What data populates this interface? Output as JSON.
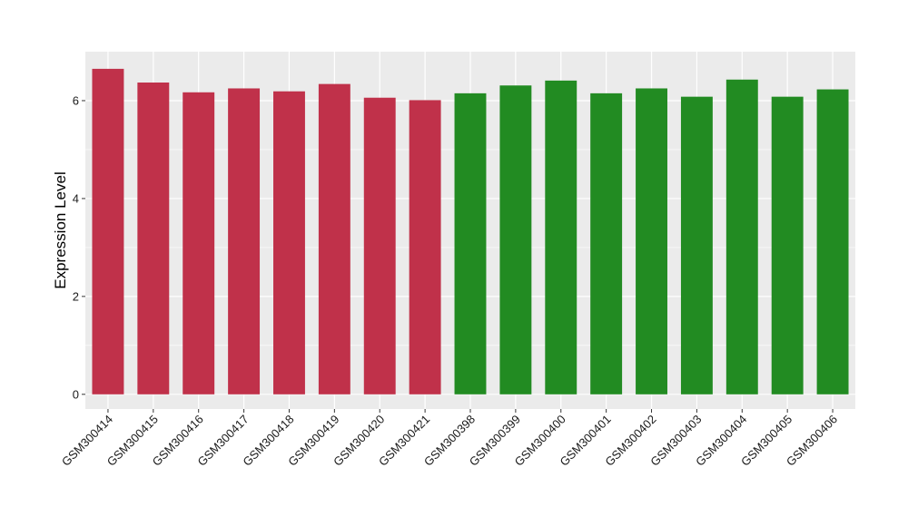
{
  "chart_data": {
    "type": "bar",
    "categories": [
      "GSM300414",
      "GSM300415",
      "GSM300416",
      "GSM300417",
      "GSM300418",
      "GSM300419",
      "GSM300420",
      "GSM300421",
      "GSM300398",
      "GSM300399",
      "GSM300400",
      "GSM300401",
      "GSM300402",
      "GSM300403",
      "GSM300404",
      "GSM300405",
      "GSM300406"
    ],
    "values": [
      6.65,
      6.37,
      6.17,
      6.25,
      6.19,
      6.34,
      6.06,
      6.01,
      6.15,
      6.31,
      6.41,
      6.15,
      6.25,
      6.08,
      6.43,
      6.08,
      6.23
    ],
    "groups": [
      0,
      0,
      0,
      0,
      0,
      0,
      0,
      0,
      1,
      1,
      1,
      1,
      1,
      1,
      1,
      1,
      1
    ],
    "group_colors": [
      "#c0314a",
      "#228b22"
    ],
    "title": "",
    "xlabel": "",
    "ylabel": "Expression Level",
    "ylim": [
      -0.3,
      7.0
    ],
    "yticks": [
      0,
      2,
      4,
      6
    ],
    "grid": true,
    "background": "#ebebeb",
    "grid_color": "#ffffff"
  }
}
